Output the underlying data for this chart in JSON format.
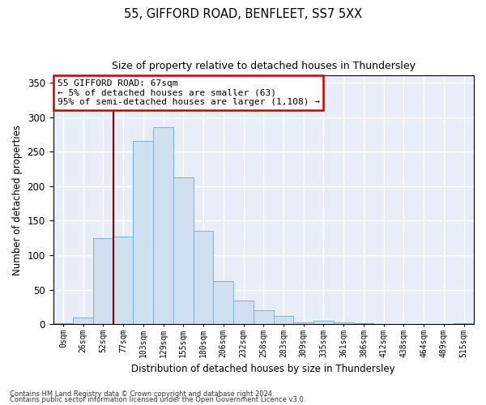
{
  "title1": "55, GIFFORD ROAD, BENFLEET, SS7 5XX",
  "title2": "Size of property relative to detached houses in Thundersley",
  "xlabel": "Distribution of detached houses by size in Thundersley",
  "ylabel": "Number of detached properties",
  "bar_color": "#cfe0f0",
  "bar_edge_color": "#7ab0d8",
  "background_color": "#e8eef8",
  "grid_color": "#ffffff",
  "categories": [
    "0sqm",
    "26sqm",
    "52sqm",
    "77sqm",
    "103sqm",
    "129sqm",
    "155sqm",
    "180sqm",
    "206sqm",
    "232sqm",
    "258sqm",
    "283sqm",
    "309sqm",
    "335sqm",
    "361sqm",
    "386sqm",
    "412sqm",
    "438sqm",
    "464sqm",
    "489sqm",
    "515sqm"
  ],
  "values": [
    2,
    10,
    125,
    127,
    265,
    285,
    213,
    135,
    62,
    35,
    20,
    12,
    3,
    5,
    3,
    2,
    1,
    0,
    1,
    0,
    2
  ],
  "vline_color": "#8b0000",
  "vline_pos": 2.5,
  "annotation_text": "55 GIFFORD ROAD: 67sqm\n← 5% of detached houses are smaller (63)\n95% of semi-detached houses are larger (1,108) →",
  "annotation_box_color": "#ffffff",
  "annotation_box_edge": "#cc0000",
  "ylim": [
    0,
    360
  ],
  "yticks": [
    0,
    50,
    100,
    150,
    200,
    250,
    300,
    350
  ],
  "footnote1": "Contains HM Land Registry data © Crown copyright and database right 2024.",
  "footnote2": "Contains public sector information licensed under the Open Government Licence v3.0."
}
